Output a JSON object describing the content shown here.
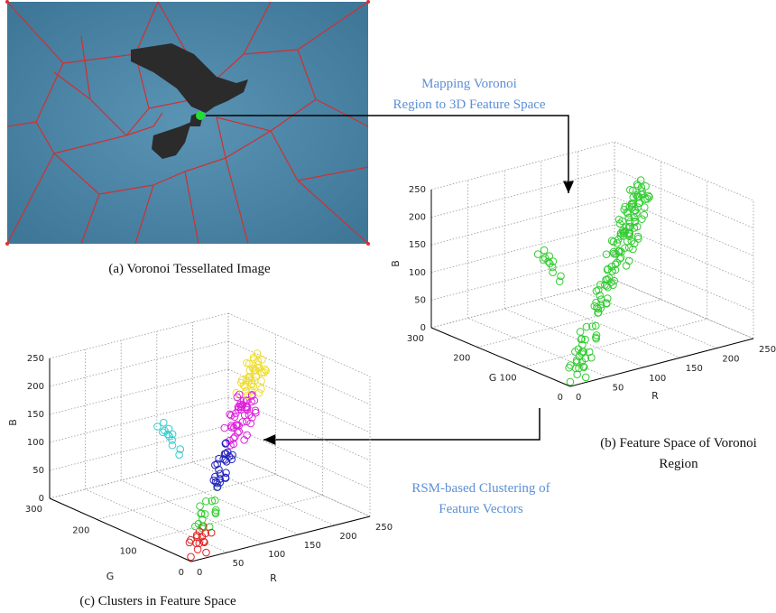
{
  "panels": {
    "a": {
      "caption": "(a) Voronoi Tessellated Image"
    },
    "b": {
      "caption_lines": [
        "(b) Feature Space of Voronoi",
        "Region"
      ],
      "axes": {
        "z_label": "B",
        "y_label": "G",
        "x_label": "R",
        "z_ticks": [
          0,
          50,
          100,
          150,
          200,
          250
        ],
        "y_ticks": [
          0,
          100,
          200,
          300
        ],
        "x_ticks": [
          0,
          50,
          100,
          150,
          200,
          250
        ]
      }
    },
    "c": {
      "caption": "(c) Clusters in Feature Space",
      "axes": {
        "z_label": "B",
        "y_label": "G",
        "x_label": "R",
        "z_ticks": [
          0,
          50,
          100,
          150,
          200,
          250
        ],
        "y_ticks": [
          0,
          100,
          200,
          300
        ],
        "x_ticks": [
          0,
          50,
          100,
          150,
          200,
          250
        ]
      }
    }
  },
  "arrows": [
    {
      "label_lines": [
        "Mapping Voronoi",
        "Region to 3D Feature Space"
      ]
    },
    {
      "label_lines": [
        "RSM-based Clustering of",
        "Feature Vectors"
      ]
    }
  ]
}
